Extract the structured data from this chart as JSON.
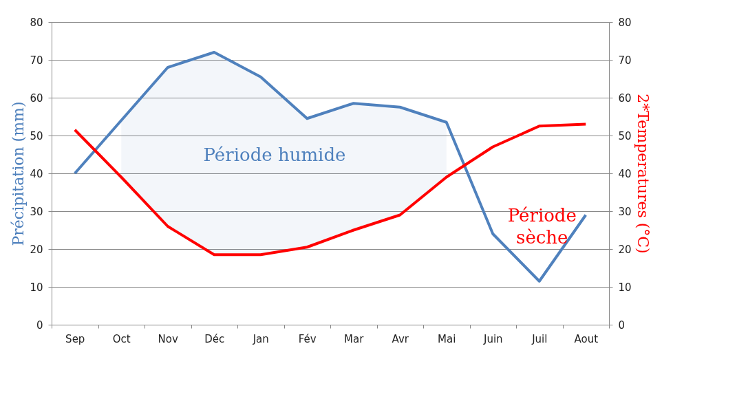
{
  "chart_data": {
    "type": "line",
    "categories": [
      "Sep",
      "Oct",
      "Nov",
      "Déc",
      "Jan",
      "Fév",
      "Mar",
      "Avr",
      "Mai",
      "Juin",
      "Juil",
      "Aout"
    ],
    "ylabel": "Précipitation (mm)",
    "y2label": "2*Temperatures (°C)",
    "ylim": [
      0,
      80
    ],
    "yticks": [
      0,
      10,
      20,
      30,
      40,
      50,
      60,
      70,
      80
    ],
    "y2lim": [
      0,
      80
    ],
    "y2ticks": [
      0,
      10,
      20,
      30,
      40,
      50,
      60,
      70,
      80
    ],
    "grid": "y",
    "marker": "none",
    "line_style": "solid",
    "series": [
      {
        "color": "#4f81bd",
        "values": [
          40,
          54,
          68,
          72,
          65.5,
          54.5,
          58.5,
          57.5,
          53.5,
          24,
          11.5,
          29
        ],
        "lower": [
          null,
          39,
          26,
          18.5,
          18.5,
          20.5,
          25,
          29,
          39,
          null,
          null,
          null
        ],
        "upper": [
          null,
          54,
          68,
          72,
          65.5,
          54.5,
          58.5,
          57.5,
          53.5,
          null,
          null,
          null
        ]
      },
      {
        "color": "#ff0000",
        "axis": "y2",
        "values": [
          51.5,
          39,
          26,
          18.5,
          18.5,
          20.5,
          25,
          29,
          39,
          47,
          52.5,
          53
        ]
      }
    ],
    "annotations": [
      "Période humide",
      "Période sèche"
    ]
  }
}
